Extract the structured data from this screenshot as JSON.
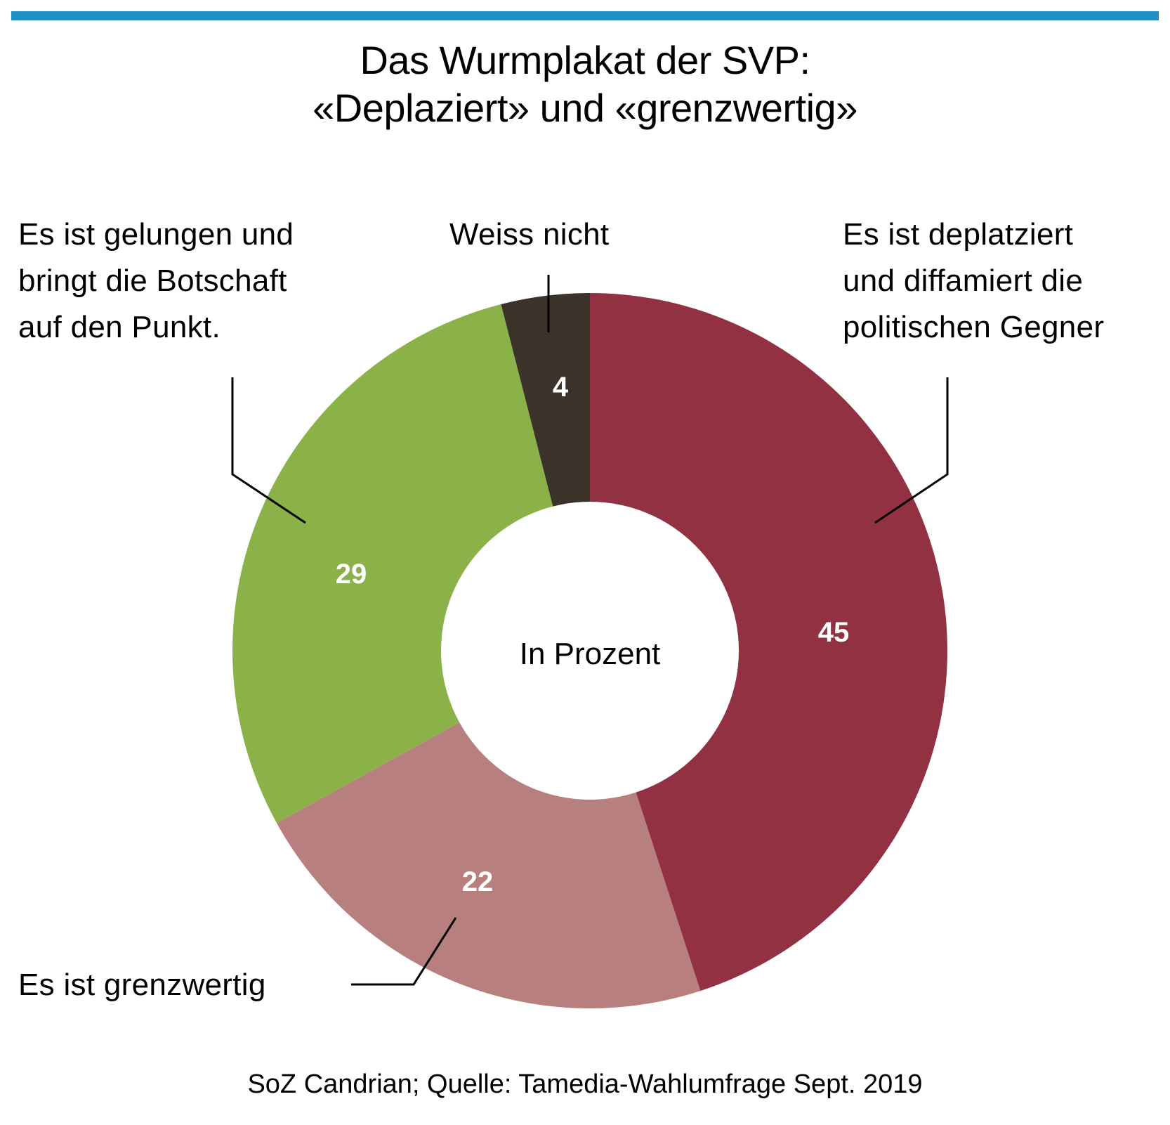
{
  "header": {
    "accent_color": "#1e8fc0"
  },
  "chart_data": {
    "type": "pie",
    "variant": "donut",
    "title": "Das Wurmplakat der SVP:",
    "subtitle": "«Deplaziert» und «grenzwertig»",
    "center_label": "In Prozent",
    "unit": "%",
    "start": "top",
    "direction": "clockwise",
    "slices": [
      {
        "label": "Es ist deplatziert und diffamiert die politischen Gegner",
        "label_lines": [
          "Es ist deplatziert",
          "und diffamiert die",
          "politischen Gegner"
        ],
        "value": 45,
        "color": "#923142"
      },
      {
        "label": "Es ist grenzwertig",
        "label_lines": [
          "Es ist grenzwertig"
        ],
        "value": 22,
        "color": "#b77f7e"
      },
      {
        "label": "Es ist gelungen und bringt die Botschaft auf den Punkt.",
        "label_lines": [
          "Es ist gelungen und",
          "bringt die Botschaft",
          "auf den Punkt."
        ],
        "value": 29,
        "color": "#8bb248"
      },
      {
        "label": "Weiss nicht",
        "label_lines": [
          "Weiss nicht"
        ],
        "value": 4,
        "color": "#3b3329"
      }
    ],
    "legend": "callout-labels"
  },
  "footer": {
    "source": "SoZ Candrian; Quelle: Tamedia-Wahlumfrage Sept. 2019"
  }
}
